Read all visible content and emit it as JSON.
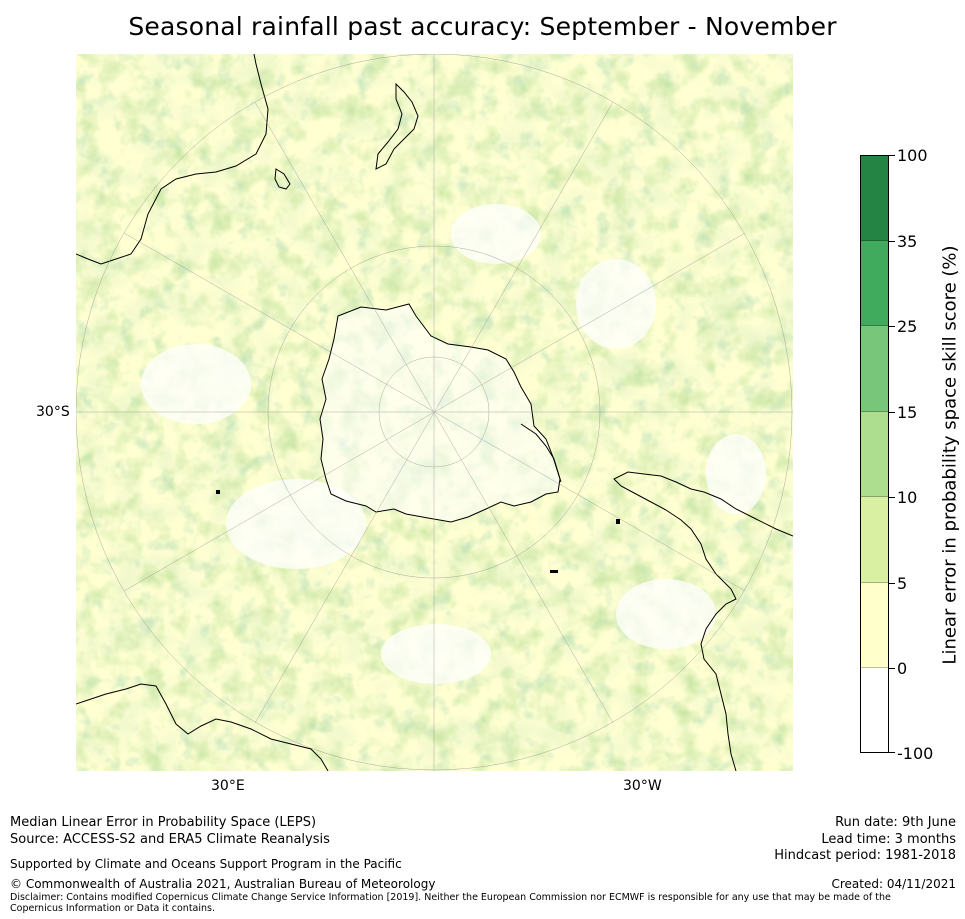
{
  "title": "Seasonal rainfall past accuracy: September - November",
  "map": {
    "projection": "south-polar-stereographic",
    "axis_labels": {
      "left": "30°S",
      "bottom_left": "30°E",
      "bottom_right": "30°W"
    },
    "fill_colors": [
      "#ffffff",
      "#ffffcc",
      "#d9f0a3",
      "#addd8e",
      "#78c679",
      "#41ab5d",
      "#238443"
    ]
  },
  "colorbar": {
    "label": "Linear error in probability space skill score (%)",
    "ticks": [
      "100",
      "35",
      "25",
      "15",
      "10",
      "5",
      "0",
      "-100"
    ],
    "colors": [
      "#238443",
      "#41ab5d",
      "#78c679",
      "#addd8e",
      "#d9f0a3",
      "#ffffcc",
      "#ffffff"
    ]
  },
  "footer": {
    "line1": "Median Linear Error in Probability Space (LEPS)",
    "line2": "Source: ACCESS-S2 and ERA5 Climate Reanalysis",
    "support": "Supported by Climate and Oceans Support Program in the Pacific",
    "copyright": "© Commonwealth of Australia 2021, Australian Bureau of Meteorology",
    "disclaimer": "Disclaimer: Contains modified Copernicus Climate Change Service Information [2019]. Neither the European Commission nor ECMWF is responsible for any use that may be made of the Copernicus Information or Data it contains.",
    "run_date": "Run date: 9th June",
    "lead_time": "Lead time: 3 months",
    "hindcast": "Hindcast period: 1981-2018",
    "created": "Created: 04/11/2021"
  }
}
